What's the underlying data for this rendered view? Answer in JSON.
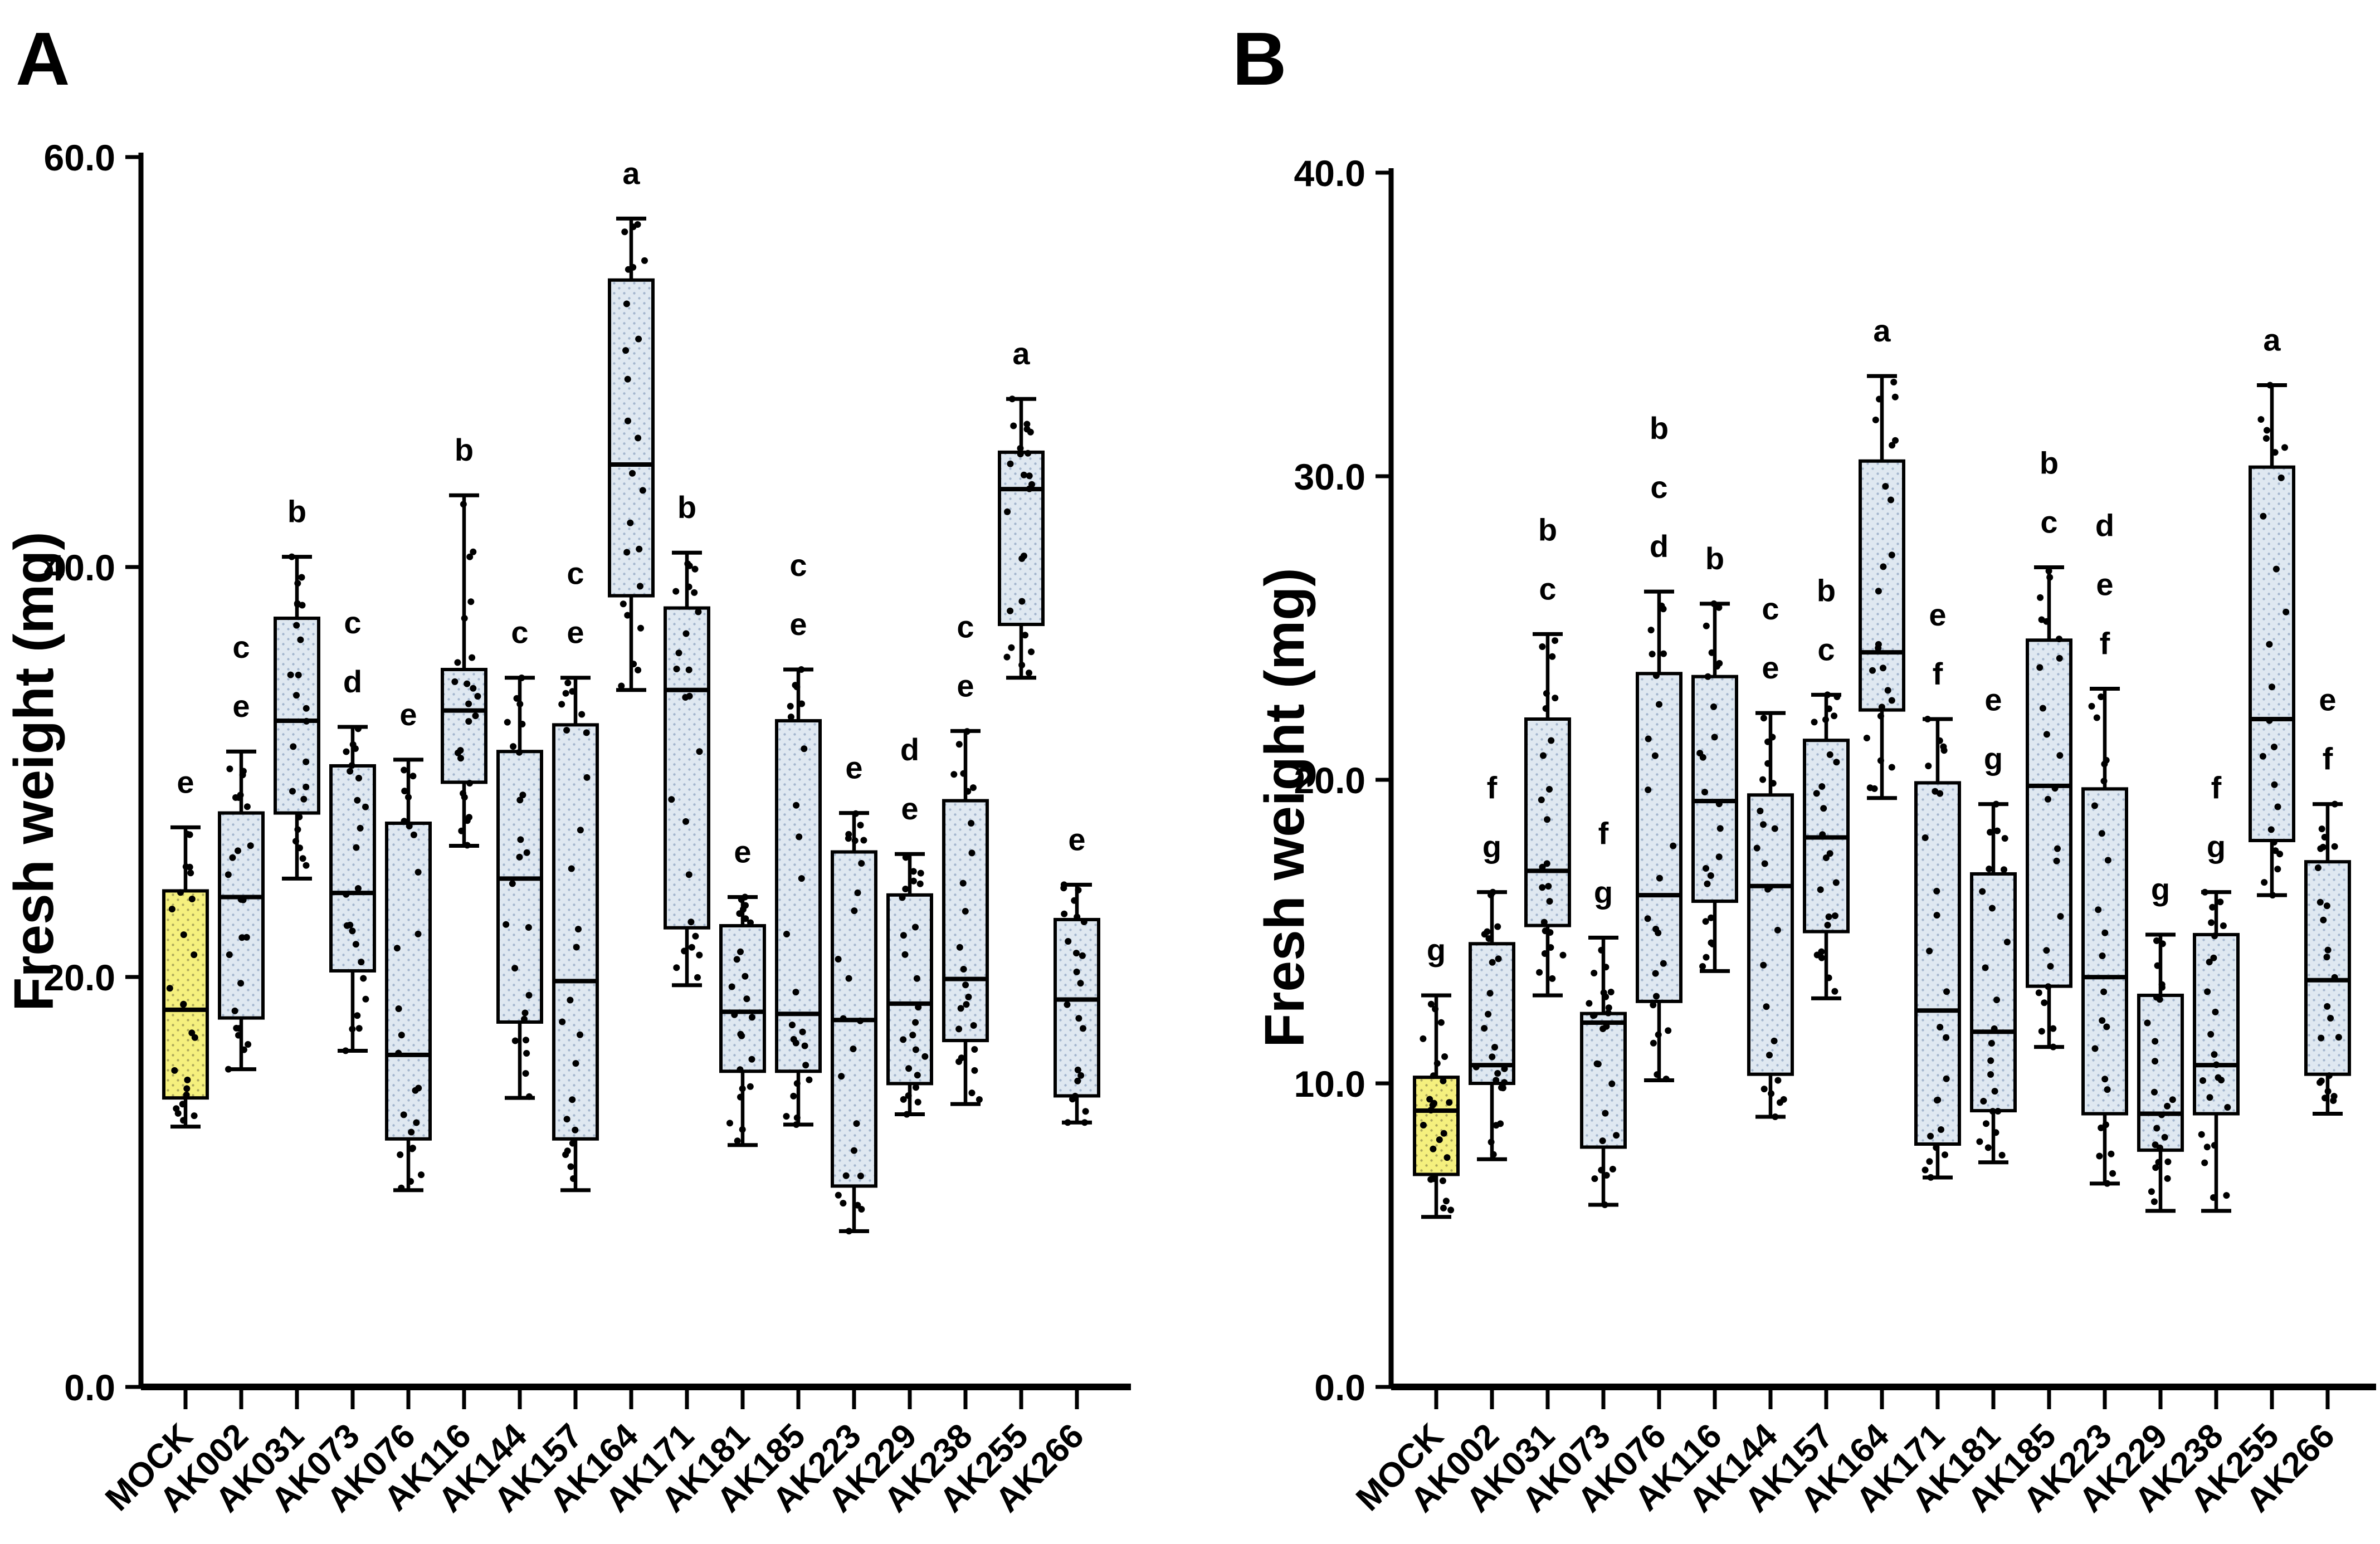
{
  "figure": {
    "background": "#FFFFFF",
    "description_visible_text_only": true,
    "colors": {
      "mock_fill": "#F5F07E",
      "mock_dot": "#9A9552",
      "treatment_fill": "#DFE8F1",
      "treatment_dot": "#93A9C4",
      "stroke": "#000000",
      "point": "#000000",
      "text": "#000000"
    }
  },
  "points_per_group": 24,
  "chart_data": [
    {
      "type": "box",
      "panel_label": "A",
      "ylabel": "Fresh weight (mg)",
      "xlabel": "",
      "ylim": [
        0,
        60
      ],
      "yticks": [
        0,
        20,
        40,
        60
      ],
      "ytick_labels": [
        "0.0",
        "20.0",
        "40.0",
        "60.0"
      ],
      "grid": false,
      "legend": "none",
      "categories": [
        "MOCK",
        "AK002",
        "AK031",
        "AK073",
        "AK076",
        "AK116",
        "AK144",
        "AK157",
        "AK164",
        "AK171",
        "AK181",
        "AK185",
        "AK223",
        "AK229",
        "AK238",
        "AK255",
        "AK266"
      ],
      "series": [
        {
          "name": "MOCK",
          "fill": "mock",
          "whisker_min": 12.7,
          "q1": 14.1,
          "median": 18.4,
          "q3": 24.2,
          "whisker_max": 27.3,
          "letters": [
            "e"
          ]
        },
        {
          "name": "AK002",
          "fill": "treatment",
          "whisker_min": 15.5,
          "q1": 18.0,
          "median": 23.9,
          "q3": 28.0,
          "whisker_max": 31.0,
          "letters": [
            "c",
            "e"
          ]
        },
        {
          "name": "AK031",
          "fill": "treatment",
          "whisker_min": 24.8,
          "q1": 28.0,
          "median": 32.5,
          "q3": 37.5,
          "whisker_max": 40.5,
          "letters": [
            "b"
          ]
        },
        {
          "name": "AK073",
          "fill": "treatment",
          "whisker_min": 16.4,
          "q1": 20.3,
          "median": 24.1,
          "q3": 30.3,
          "whisker_max": 32.2,
          "letters": [
            "c",
            "d"
          ]
        },
        {
          "name": "AK076",
          "fill": "treatment",
          "whisker_min": 9.6,
          "q1": 12.1,
          "median": 16.2,
          "q3": 27.5,
          "whisker_max": 30.6,
          "letters": [
            "e"
          ]
        },
        {
          "name": "AK116",
          "fill": "treatment",
          "whisker_min": 26.4,
          "q1": 29.5,
          "median": 33.0,
          "q3": 35.0,
          "whisker_max": 43.5,
          "letters": [
            "b"
          ]
        },
        {
          "name": "AK144",
          "fill": "treatment",
          "whisker_min": 14.1,
          "q1": 17.8,
          "median": 24.8,
          "q3": 31.0,
          "whisker_max": 34.6,
          "letters": [
            "c"
          ]
        },
        {
          "name": "AK157",
          "fill": "treatment",
          "whisker_min": 9.6,
          "q1": 12.1,
          "median": 19.8,
          "q3": 32.3,
          "whisker_max": 34.6,
          "letters": [
            "c",
            "e"
          ]
        },
        {
          "name": "AK164",
          "fill": "treatment",
          "whisker_min": 34.0,
          "q1": 38.6,
          "median": 45.0,
          "q3": 54.0,
          "whisker_max": 57.0,
          "letters": [
            "a"
          ]
        },
        {
          "name": "AK171",
          "fill": "treatment",
          "whisker_min": 19.6,
          "q1": 22.4,
          "median": 34.0,
          "q3": 38.0,
          "whisker_max": 40.7,
          "letters": [
            "b"
          ]
        },
        {
          "name": "AK181",
          "fill": "treatment",
          "whisker_min": 11.8,
          "q1": 15.4,
          "median": 18.3,
          "q3": 22.5,
          "whisker_max": 23.9,
          "letters": [
            "e"
          ]
        },
        {
          "name": "AK185",
          "fill": "treatment",
          "whisker_min": 12.8,
          "q1": 15.4,
          "median": 18.2,
          "q3": 32.5,
          "whisker_max": 35.0,
          "letters": [
            "c",
            "e"
          ]
        },
        {
          "name": "AK223",
          "fill": "treatment",
          "whisker_min": 7.6,
          "q1": 9.8,
          "median": 17.9,
          "q3": 26.1,
          "whisker_max": 28.0,
          "letters": [
            "e"
          ]
        },
        {
          "name": "AK229",
          "fill": "treatment",
          "whisker_min": 13.3,
          "q1": 14.8,
          "median": 18.7,
          "q3": 24.0,
          "whisker_max": 26.0,
          "letters": [
            "d",
            "e"
          ]
        },
        {
          "name": "AK238",
          "fill": "treatment",
          "whisker_min": 13.8,
          "q1": 16.9,
          "median": 19.9,
          "q3": 28.6,
          "whisker_max": 32.0,
          "letters": [
            "c",
            "e"
          ]
        },
        {
          "name": "AK255",
          "fill": "treatment",
          "whisker_min": 34.6,
          "q1": 37.2,
          "median": 43.8,
          "q3": 45.6,
          "whisker_max": 48.2,
          "letters": [
            "a"
          ]
        },
        {
          "name": "AK266",
          "fill": "treatment",
          "whisker_min": 12.9,
          "q1": 14.2,
          "median": 18.9,
          "q3": 22.8,
          "whisker_max": 24.5,
          "letters": [
            "e"
          ]
        }
      ]
    },
    {
      "type": "box",
      "panel_label": "B",
      "ylabel": "Fresh weight (mg)",
      "xlabel": "",
      "ylim": [
        0,
        40
      ],
      "yticks": [
        0,
        10,
        20,
        30,
        40
      ],
      "ytick_labels": [
        "0.0",
        "10.0",
        "20.0",
        "30.0",
        "40.0"
      ],
      "grid": false,
      "legend": "none",
      "categories": [
        "MOCK",
        "AK002",
        "AK031",
        "AK073",
        "AK076",
        "AK116",
        "AK144",
        "AK157",
        "AK164",
        "AK171",
        "AK181",
        "AK185",
        "AK223",
        "AK229",
        "AK238",
        "AK255",
        "AK266"
      ],
      "series": [
        {
          "name": "MOCK",
          "fill": "mock",
          "whisker_min": 5.6,
          "q1": 7.0,
          "median": 9.1,
          "q3": 10.2,
          "whisker_max": 12.9,
          "letters": [
            "g"
          ]
        },
        {
          "name": "AK002",
          "fill": "treatment",
          "whisker_min": 7.5,
          "q1": 10.0,
          "median": 10.6,
          "q3": 14.6,
          "whisker_max": 16.3,
          "letters": [
            "f",
            "g"
          ]
        },
        {
          "name": "AK031",
          "fill": "treatment",
          "whisker_min": 12.9,
          "q1": 15.2,
          "median": 17.0,
          "q3": 22.0,
          "whisker_max": 24.8,
          "letters": [
            "b",
            "c"
          ]
        },
        {
          "name": "AK073",
          "fill": "treatment",
          "whisker_min": 6.0,
          "q1": 7.9,
          "median": 12.0,
          "q3": 12.3,
          "whisker_max": 14.8,
          "letters": [
            "f",
            "g"
          ]
        },
        {
          "name": "AK076",
          "fill": "treatment",
          "whisker_min": 10.1,
          "q1": 12.7,
          "median": 16.2,
          "q3": 23.5,
          "whisker_max": 26.2,
          "letters": [
            "b",
            "c",
            "d"
          ]
        },
        {
          "name": "AK116",
          "fill": "treatment",
          "whisker_min": 13.7,
          "q1": 16.0,
          "median": 19.3,
          "q3": 23.4,
          "whisker_max": 25.8,
          "letters": [
            "b"
          ]
        },
        {
          "name": "AK144",
          "fill": "treatment",
          "whisker_min": 8.9,
          "q1": 10.3,
          "median": 16.5,
          "q3": 19.5,
          "whisker_max": 22.2,
          "letters": [
            "c",
            "e"
          ]
        },
        {
          "name": "AK157",
          "fill": "treatment",
          "whisker_min": 12.8,
          "q1": 15.0,
          "median": 18.1,
          "q3": 21.3,
          "whisker_max": 22.8,
          "letters": [
            "b",
            "c"
          ]
        },
        {
          "name": "AK164",
          "fill": "treatment",
          "whisker_min": 19.4,
          "q1": 22.3,
          "median": 24.2,
          "q3": 30.5,
          "whisker_max": 33.3,
          "letters": [
            "a"
          ]
        },
        {
          "name": "AK171",
          "fill": "treatment",
          "whisker_min": 6.9,
          "q1": 8.0,
          "median": 12.4,
          "q3": 19.9,
          "whisker_max": 22.0,
          "letters": [
            "e",
            "f"
          ]
        },
        {
          "name": "AK181",
          "fill": "treatment",
          "whisker_min": 7.4,
          "q1": 9.1,
          "median": 11.7,
          "q3": 16.9,
          "whisker_max": 19.2,
          "letters": [
            "e",
            "g"
          ]
        },
        {
          "name": "AK185",
          "fill": "treatment",
          "whisker_min": 11.2,
          "q1": 13.2,
          "median": 19.8,
          "q3": 24.6,
          "whisker_max": 27.0,
          "letters": [
            "b",
            "c"
          ]
        },
        {
          "name": "AK223",
          "fill": "treatment",
          "whisker_min": 6.7,
          "q1": 9.0,
          "median": 13.5,
          "q3": 19.7,
          "whisker_max": 23.0,
          "letters": [
            "d",
            "e",
            "f"
          ]
        },
        {
          "name": "AK229",
          "fill": "treatment",
          "whisker_min": 5.8,
          "q1": 7.8,
          "median": 9.0,
          "q3": 12.9,
          "whisker_max": 14.9,
          "letters": [
            "g"
          ]
        },
        {
          "name": "AK238",
          "fill": "treatment",
          "whisker_min": 5.8,
          "q1": 9.0,
          "median": 10.6,
          "q3": 14.9,
          "whisker_max": 16.3,
          "letters": [
            "f",
            "g"
          ]
        },
        {
          "name": "AK255",
          "fill": "treatment",
          "whisker_min": 16.2,
          "q1": 18.0,
          "median": 22.0,
          "q3": 30.3,
          "whisker_max": 33.0,
          "letters": [
            "a"
          ]
        },
        {
          "name": "AK266",
          "fill": "treatment",
          "whisker_min": 9.0,
          "q1": 10.3,
          "median": 13.4,
          "q3": 17.3,
          "whisker_max": 19.2,
          "letters": [
            "e",
            "f"
          ]
        }
      ]
    }
  ]
}
